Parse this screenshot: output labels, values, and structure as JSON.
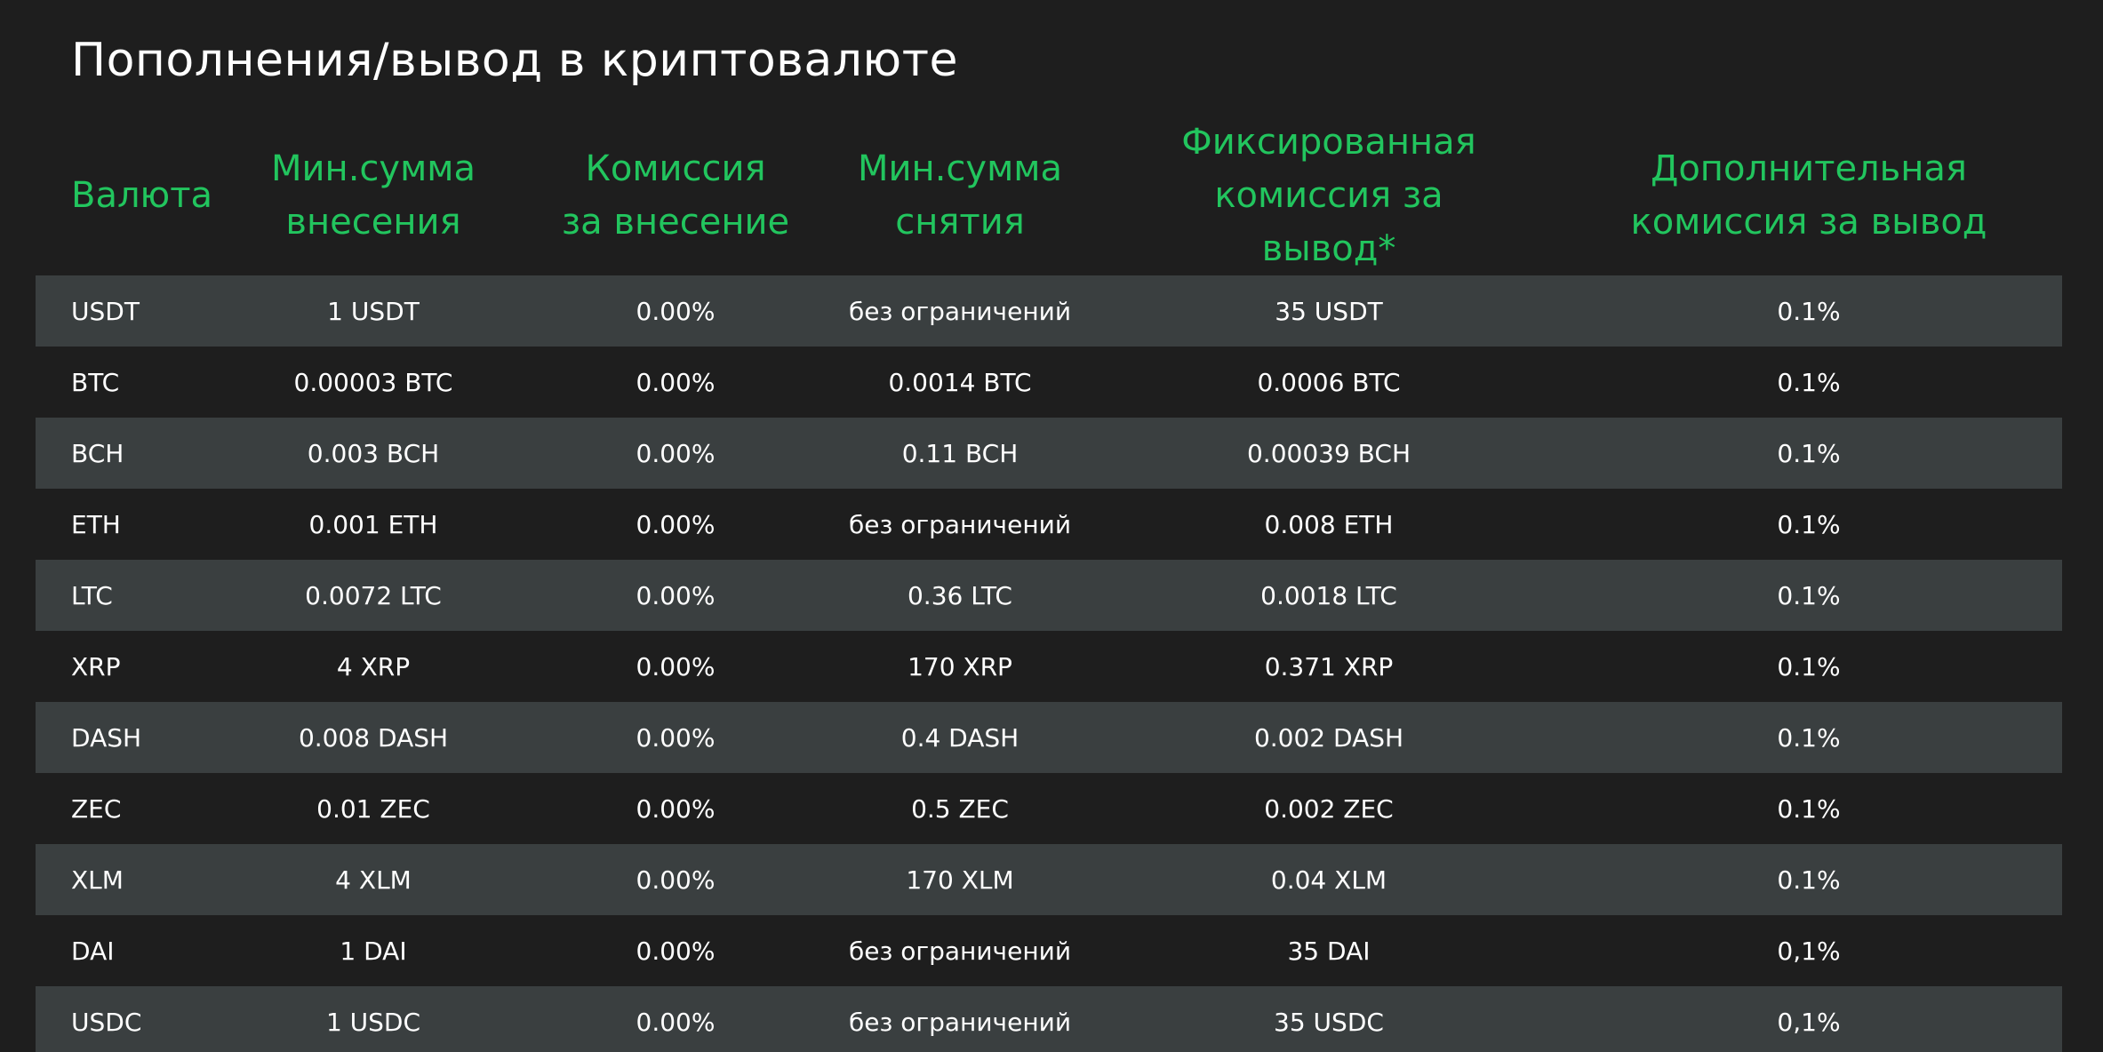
{
  "title": "Пополнения/вывод в криптовалюте",
  "colors": {
    "background": "#1e1e1e",
    "header_accent": "#22c55e",
    "row_stripe": "#3a3f40",
    "text": "#ffffff"
  },
  "headers": [
    "Валюта",
    "Мин.сумма внесения",
    "Комиссия за внесение",
    "Мин.сумма снятия",
    "Фиксированная комиссия за вывод*",
    "Дополнительная комиссия за вывод"
  ],
  "rows": [
    [
      "USDT",
      "1 USDT",
      "0.00%",
      "без ограничений",
      "35 USDT",
      "0.1%"
    ],
    [
      "BTC",
      "0.00003 BTC",
      "0.00%",
      "0.0014 BTC",
      "0.0006 BTC",
      "0.1%"
    ],
    [
      "BCH",
      "0.003 BCH",
      "0.00%",
      "0.11 BCH",
      "0.00039 BCH",
      "0.1%"
    ],
    [
      "ETH",
      "0.001 ETH",
      "0.00%",
      "без ограничений",
      "0.008 ETH",
      "0.1%"
    ],
    [
      "LTC",
      "0.0072 LTC",
      "0.00%",
      "0.36 LTC",
      "0.0018 LTC",
      "0.1%"
    ],
    [
      "XRP",
      "4 XRP",
      "0.00%",
      "170 XRP",
      "0.371 XRP",
      "0.1%"
    ],
    [
      "DASH",
      "0.008 DASH",
      "0.00%",
      "0.4 DASH",
      "0.002 DASH",
      "0.1%"
    ],
    [
      "ZEC",
      "0.01 ZEC",
      "0.00%",
      "0.5 ZEC",
      "0.002 ZEC",
      "0.1%"
    ],
    [
      "XLM",
      "4 XLM",
      "0.00%",
      "170 XLM",
      "0.04 XLM",
      "0.1%"
    ],
    [
      "DAI",
      "1 DAI",
      "0.00%",
      "без ограничений",
      "35 DAI",
      "0,1%"
    ],
    [
      "USDC",
      "1 USDC",
      "0.00%",
      "без ограничений",
      "35 USDC",
      "0,1%"
    ]
  ]
}
